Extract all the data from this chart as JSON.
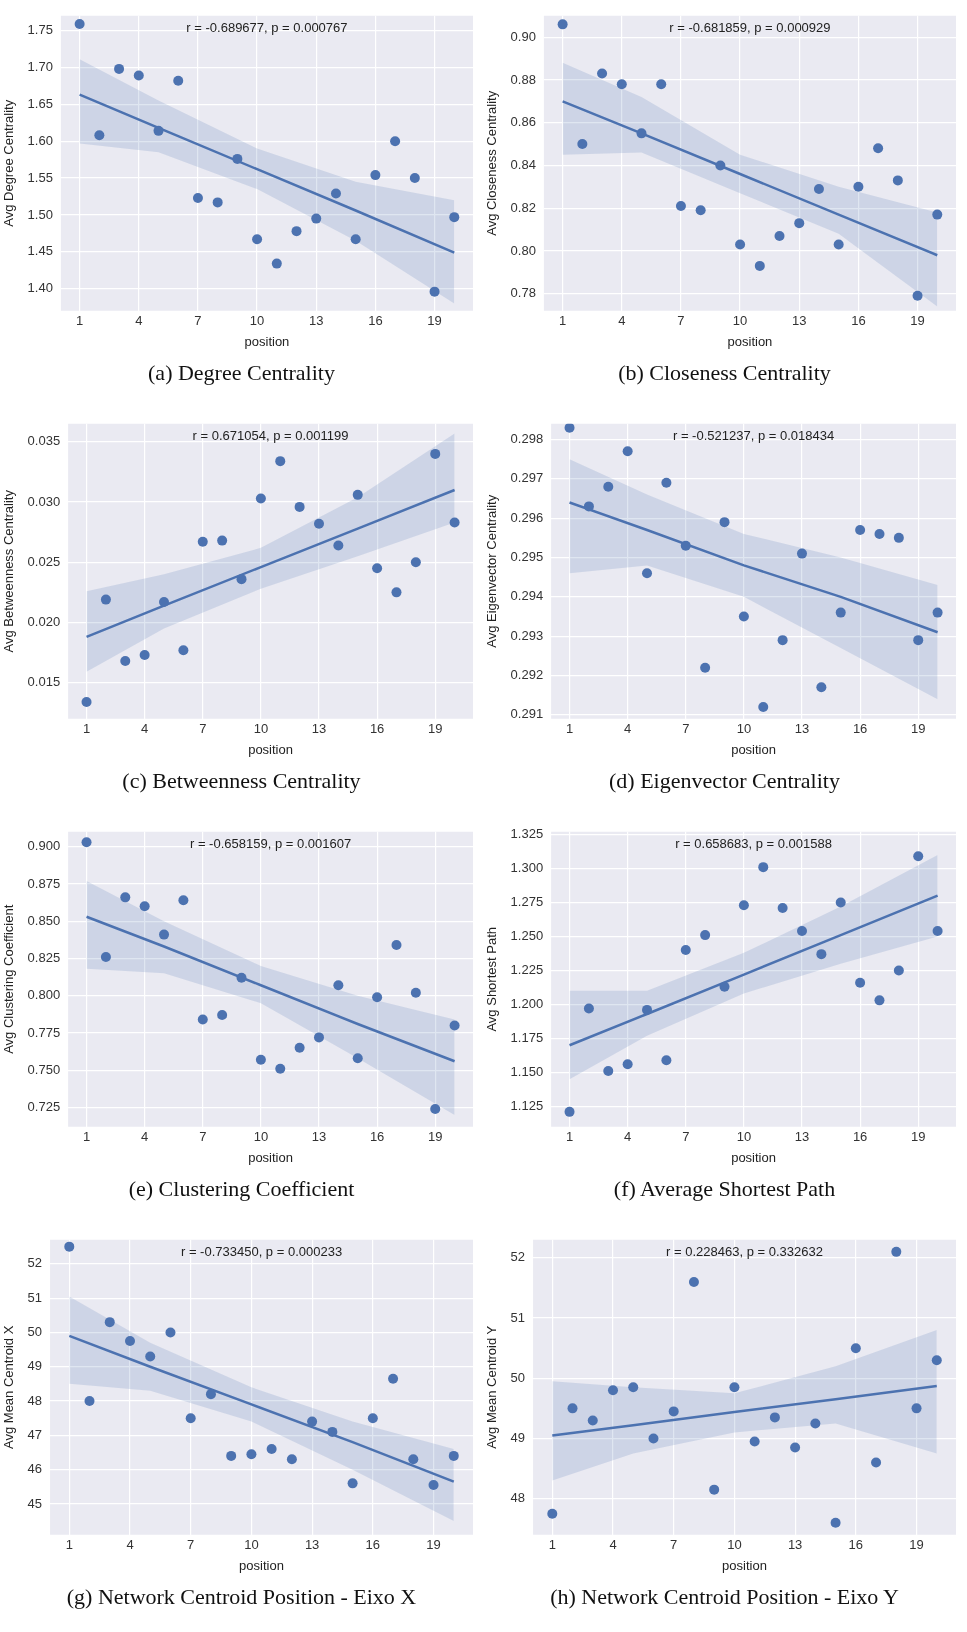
{
  "chart_data": [
    {
      "type": "scatter",
      "title": "(a) Degree Centrality",
      "xlabel": "position",
      "ylabel": "Avg Degree Centrality",
      "annotations": [
        "r = -0.689677, p = 0.000767"
      ],
      "xlim": [
        0.05,
        20.95
      ],
      "xticks": [
        1,
        4,
        7,
        10,
        13,
        16,
        19
      ],
      "ylim": [
        1.37,
        1.77
      ],
      "yticks": [
        {
          "value": 1.4,
          "label": "1.40"
        },
        1.45,
        {
          "value": 1.5,
          "label": "1.50"
        },
        1.55,
        {
          "value": 1.6,
          "label": "1.60"
        },
        1.65,
        {
          "value": 1.7,
          "label": "1.70"
        },
        1.75
      ],
      "grid": true,
      "series": [
        {
          "marker": "circle",
          "color": "#4c72b0",
          "x": [
            1,
            2,
            3,
            4,
            5,
            6,
            7,
            8,
            9,
            10,
            11,
            12,
            13,
            14,
            15,
            16,
            17,
            18,
            19,
            20
          ],
          "values": [
            1.759,
            1.608,
            1.698,
            1.689,
            1.614,
            1.682,
            1.523,
            1.517,
            1.576,
            1.467,
            1.434,
            1.478,
            1.495,
            1.529,
            1.467,
            1.554,
            1.6,
            1.55,
            1.396,
            1.497
          ]
        },
        {
          "type": "line",
          "marker": "none",
          "color": "#4c72b0",
          "x": [
            1,
            5,
            10,
            15,
            20
          ],
          "values": [
            1.663,
            1.618,
            1.562,
            1.506,
            1.449
          ],
          "lower": [
            1.597,
            1.585,
            1.535,
            1.465,
            1.38
          ],
          "upper": [
            1.711,
            1.655,
            1.59,
            1.545,
            1.52
          ]
        }
      ]
    },
    {
      "type": "scatter",
      "title": "(b) Closeness Centrality",
      "xlabel": "position",
      "ylabel": "Avg Closeness Centrality",
      "annotations": [
        "r = -0.681859, p = 0.000929"
      ],
      "xlim": [
        0.05,
        20.95
      ],
      "xticks": [
        1,
        4,
        7,
        10,
        13,
        16,
        19
      ],
      "ylim": [
        0.772,
        0.91
      ],
      "yticks": [
        0.78,
        {
          "value": 0.8,
          "label": "0.80"
        },
        0.82,
        0.84,
        0.86,
        0.88,
        {
          "value": 0.9,
          "label": "0.90"
        }
      ],
      "grid": true,
      "series": [
        {
          "marker": "circle",
          "color": "#4c72b0",
          "x": [
            1,
            2,
            3,
            4,
            5,
            6,
            7,
            8,
            9,
            10,
            11,
            12,
            13,
            14,
            15,
            16,
            17,
            18,
            19,
            20
          ],
          "values": [
            0.906,
            0.85,
            0.883,
            0.878,
            0.855,
            0.878,
            0.821,
            0.819,
            0.84,
            0.803,
            0.793,
            0.807,
            0.813,
            0.829,
            0.803,
            0.83,
            0.848,
            0.833,
            0.779,
            0.817
          ]
        },
        {
          "type": "line",
          "marker": "none",
          "color": "#4c72b0",
          "x": [
            1,
            5,
            10,
            15,
            20
          ],
          "values": [
            0.87,
            0.855,
            0.836,
            0.817,
            0.798
          ],
          "lower": [
            0.845,
            0.846,
            0.827,
            0.808,
            0.774
          ],
          "upper": [
            0.888,
            0.872,
            0.845,
            0.83,
            0.818
          ]
        }
      ]
    },
    {
      "type": "scatter",
      "title": "(c) Betweenness Centrality",
      "xlabel": "position",
      "ylabel": "Avg Betweenness Centrality",
      "annotations": [
        "r = 0.671054, p = 0.001199"
      ],
      "xlim": [
        0.05,
        20.95
      ],
      "xticks": [
        1,
        4,
        7,
        10,
        13,
        16,
        19
      ],
      "ylim": [
        0.012,
        0.0365
      ],
      "yticks": [
        0.015,
        {
          "value": 0.02,
          "label": "0.020"
        },
        0.025,
        {
          "value": 0.03,
          "label": "0.030"
        },
        0.035
      ],
      "grid": true,
      "series": [
        {
          "marker": "circle",
          "color": "#4c72b0",
          "x": [
            1,
            2,
            3,
            4,
            5,
            6,
            7,
            8,
            9,
            10,
            11,
            12,
            13,
            14,
            15,
            16,
            17,
            18,
            19,
            20
          ],
          "values": [
            0.0134,
            0.0219,
            0.0168,
            0.0173,
            0.0217,
            0.0177,
            0.0267,
            0.0268,
            0.0236,
            0.0303,
            0.0334,
            0.0296,
            0.0282,
            0.0264,
            0.0306,
            0.0245,
            0.0225,
            0.025,
            0.034,
            0.0283
          ]
        },
        {
          "type": "line",
          "marker": "none",
          "color": "#4c72b0",
          "x": [
            1,
            5,
            10,
            15,
            20
          ],
          "values": [
            0.0188,
            0.0214,
            0.0246,
            0.0278,
            0.031
          ],
          "lower": [
            0.0159,
            0.0195,
            0.0228,
            0.0255,
            0.0283
          ],
          "upper": [
            0.0226,
            0.024,
            0.0262,
            0.0304,
            0.0357
          ]
        }
      ]
    },
    {
      "type": "scatter",
      "title": "(d) Eigenvector Centrality",
      "xlabel": "position",
      "ylabel": "Avg Eigenvector Centrality",
      "annotations": [
        "r = -0.521237, p = 0.018434"
      ],
      "xlim": [
        0.05,
        20.95
      ],
      "xticks": [
        1,
        4,
        7,
        10,
        13,
        16,
        19
      ],
      "ylim": [
        0.2909,
        0.2984
      ],
      "yticks": [
        0.291,
        0.292,
        0.293,
        0.294,
        0.295,
        0.296,
        0.297,
        0.298
      ],
      "grid": true,
      "series": [
        {
          "marker": "circle",
          "color": "#4c72b0",
          "x": [
            1,
            2,
            3,
            4,
            5,
            6,
            7,
            8,
            9,
            10,
            11,
            12,
            13,
            14,
            15,
            16,
            17,
            18,
            19,
            20
          ],
          "values": [
            0.2983,
            0.2963,
            0.2968,
            0.2977,
            0.2946,
            0.2969,
            0.2953,
            0.2922,
            0.2959,
            0.2935,
            0.2912,
            0.2929,
            0.2951,
            0.2917,
            0.2936,
            0.2957,
            0.2956,
            0.2955,
            0.2929,
            0.2936
          ]
        },
        {
          "type": "line",
          "marker": "none",
          "color": "#4c72b0",
          "x": [
            1,
            5,
            10,
            15,
            20
          ],
          "values": [
            0.2964,
            0.2957,
            0.2948,
            0.294,
            0.2931
          ],
          "lower": [
            0.2946,
            0.2948,
            0.294,
            0.2927,
            0.2914
          ],
          "upper": [
            0.2975,
            0.2966,
            0.2956,
            0.295,
            0.2943
          ]
        }
      ]
    },
    {
      "type": "scatter",
      "title": "(e) Clustering Coefficient",
      "xlabel": "position",
      "ylabel": "Avg Clustering Coefficient",
      "annotations": [
        "r = -0.658159, p = 0.001607"
      ],
      "xlim": [
        0.05,
        20.95
      ],
      "xticks": [
        1,
        4,
        7,
        10,
        13,
        16,
        19
      ],
      "ylim": [
        0.712,
        0.91
      ],
      "yticks": [
        0.725,
        {
          "value": 0.75,
          "label": "0.750"
        },
        0.775,
        {
          "value": 0.8,
          "label": "0.800"
        },
        0.825,
        {
          "value": 0.85,
          "label": "0.850"
        },
        0.875,
        {
          "value": 0.9,
          "label": "0.900"
        }
      ],
      "grid": true,
      "series": [
        {
          "marker": "circle",
          "color": "#4c72b0",
          "x": [
            1,
            2,
            3,
            4,
            5,
            6,
            7,
            8,
            9,
            10,
            11,
            12,
            13,
            14,
            15,
            16,
            17,
            18,
            19,
            20
          ],
          "values": [
            0.903,
            0.826,
            0.866,
            0.86,
            0.841,
            0.864,
            0.784,
            0.787,
            0.812,
            0.757,
            0.751,
            0.765,
            0.772,
            0.807,
            0.758,
            0.799,
            0.834,
            0.802,
            0.724,
            0.78
          ]
        },
        {
          "type": "line",
          "marker": "none",
          "color": "#4c72b0",
          "x": [
            1,
            5,
            10,
            15,
            20
          ],
          "values": [
            0.853,
            0.833,
            0.807,
            0.781,
            0.756
          ],
          "lower": [
            0.818,
            0.815,
            0.795,
            0.758,
            0.72
          ],
          "upper": [
            0.877,
            0.85,
            0.82,
            0.8,
            0.784
          ]
        }
      ]
    },
    {
      "type": "scatter",
      "title": "(f) Average Shortest Path",
      "xlabel": "position",
      "ylabel": "Avg Shortest Path",
      "annotations": [
        "r = 0.658683, p = 0.001588"
      ],
      "xlim": [
        0.05,
        20.95
      ],
      "xticks": [
        1,
        4,
        7,
        10,
        13,
        16,
        19
      ],
      "ylim": [
        1.11,
        1.327
      ],
      "yticks": [
        1.125,
        {
          "value": 1.15,
          "label": "1.150"
        },
        1.175,
        {
          "value": 1.2,
          "label": "1.200"
        },
        1.225,
        {
          "value": 1.25,
          "label": "1.250"
        },
        1.275,
        {
          "value": 1.3,
          "label": "1.300"
        },
        1.325
      ],
      "grid": true,
      "series": [
        {
          "marker": "circle",
          "color": "#4c72b0",
          "x": [
            1,
            2,
            3,
            4,
            5,
            6,
            7,
            8,
            9,
            10,
            11,
            12,
            13,
            14,
            15,
            16,
            17,
            18,
            19,
            20
          ],
          "values": [
            1.121,
            1.197,
            1.151,
            1.156,
            1.196,
            1.159,
            1.24,
            1.251,
            1.213,
            1.273,
            1.301,
            1.271,
            1.254,
            1.237,
            1.275,
            1.216,
            1.203,
            1.225,
            1.309,
            1.254
          ]
        },
        {
          "type": "line",
          "marker": "none",
          "color": "#4c72b0",
          "x": [
            1,
            5,
            10,
            15,
            20
          ],
          "values": [
            1.17,
            1.193,
            1.222,
            1.251,
            1.28
          ],
          "lower": [
            1.145,
            1.177,
            1.208,
            1.23,
            1.25
          ],
          "upper": [
            1.21,
            1.21,
            1.238,
            1.272,
            1.31
          ]
        }
      ]
    },
    {
      "type": "scatter",
      "title": "(g) Network Centroid Position - Eixo X",
      "xlabel": "position",
      "ylabel": "Avg Mean Centroid X",
      "annotations": [
        "r = -0.733450, p = 0.000233"
      ],
      "xlim": [
        0.05,
        20.95
      ],
      "xticks": [
        1,
        4,
        7,
        10,
        13,
        16,
        19
      ],
      "ylim": [
        44.1,
        52.7
      ],
      "yticks": [
        45,
        46,
        47,
        48,
        49,
        50,
        51,
        52
      ],
      "grid": true,
      "series": [
        {
          "marker": "circle",
          "color": "#4c72b0",
          "x": [
            1,
            2,
            3,
            4,
            5,
            6,
            7,
            8,
            9,
            10,
            11,
            12,
            13,
            14,
            15,
            16,
            17,
            18,
            19,
            20
          ],
          "values": [
            52.5,
            48.0,
            50.3,
            49.75,
            49.3,
            50.0,
            47.5,
            48.2,
            46.4,
            46.45,
            46.6,
            46.3,
            47.4,
            47.1,
            45.6,
            47.5,
            48.65,
            46.3,
            45.55,
            46.4
          ]
        },
        {
          "type": "line",
          "marker": "none",
          "color": "#4c72b0",
          "x": [
            1,
            5,
            10,
            15,
            20
          ],
          "values": [
            49.9,
            49.0,
            47.9,
            46.8,
            45.65
          ],
          "lower": [
            48.5,
            48.3,
            47.4,
            46.0,
            44.5
          ],
          "upper": [
            51.05,
            49.7,
            48.4,
            47.4,
            46.6
          ]
        }
      ]
    },
    {
      "type": "scatter",
      "title": "(h) Network Centroid Position - Eixo Y",
      "xlabel": "position",
      "ylabel": "Avg Mean Centroid Y",
      "annotations": [
        "r = 0.228463, p = 0.332632"
      ],
      "xlim": [
        0.05,
        20.95
      ],
      "xticks": [
        1,
        4,
        7,
        10,
        13,
        16,
        19
      ],
      "ylim": [
        47.4,
        52.3
      ],
      "yticks": [
        48,
        49,
        50,
        51,
        52
      ],
      "grid": true,
      "series": [
        {
          "marker": "circle",
          "color": "#4c72b0",
          "x": [
            1,
            2,
            3,
            4,
            5,
            6,
            7,
            8,
            9,
            10,
            11,
            12,
            13,
            14,
            15,
            16,
            17,
            18,
            19,
            20
          ],
          "values": [
            47.75,
            49.5,
            49.3,
            49.8,
            49.85,
            49.0,
            49.45,
            51.6,
            48.15,
            49.85,
            48.95,
            49.35,
            48.85,
            49.25,
            47.6,
            50.5,
            48.6,
            52.1,
            49.5,
            50.3
          ]
        },
        {
          "type": "line",
          "marker": "none",
          "color": "#4c72b0",
          "x": [
            1,
            5,
            10,
            15,
            20
          ],
          "values": [
            49.05,
            49.22,
            49.44,
            49.65,
            49.87
          ],
          "lower": [
            48.3,
            48.75,
            49.1,
            49.25,
            48.75
          ],
          "upper": [
            49.95,
            49.85,
            49.75,
            50.2,
            50.8
          ]
        }
      ]
    }
  ]
}
